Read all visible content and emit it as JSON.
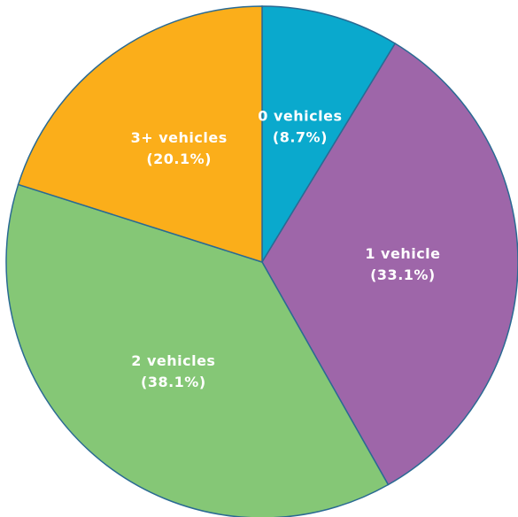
{
  "chart_data": {
    "type": "pie",
    "categories": [
      "0 vehicles",
      "1 vehicle",
      "2 vehicles",
      "3+ vehicles"
    ],
    "values": [
      8.7,
      33.1,
      38.1,
      20.1
    ],
    "value_labels": [
      "(8.7%)",
      "(33.1%)",
      "(38.1%)",
      "(20.1%)"
    ],
    "colors": [
      "#0aa9cd",
      "#9e66a9",
      "#85c776",
      "#fbae1a"
    ]
  }
}
